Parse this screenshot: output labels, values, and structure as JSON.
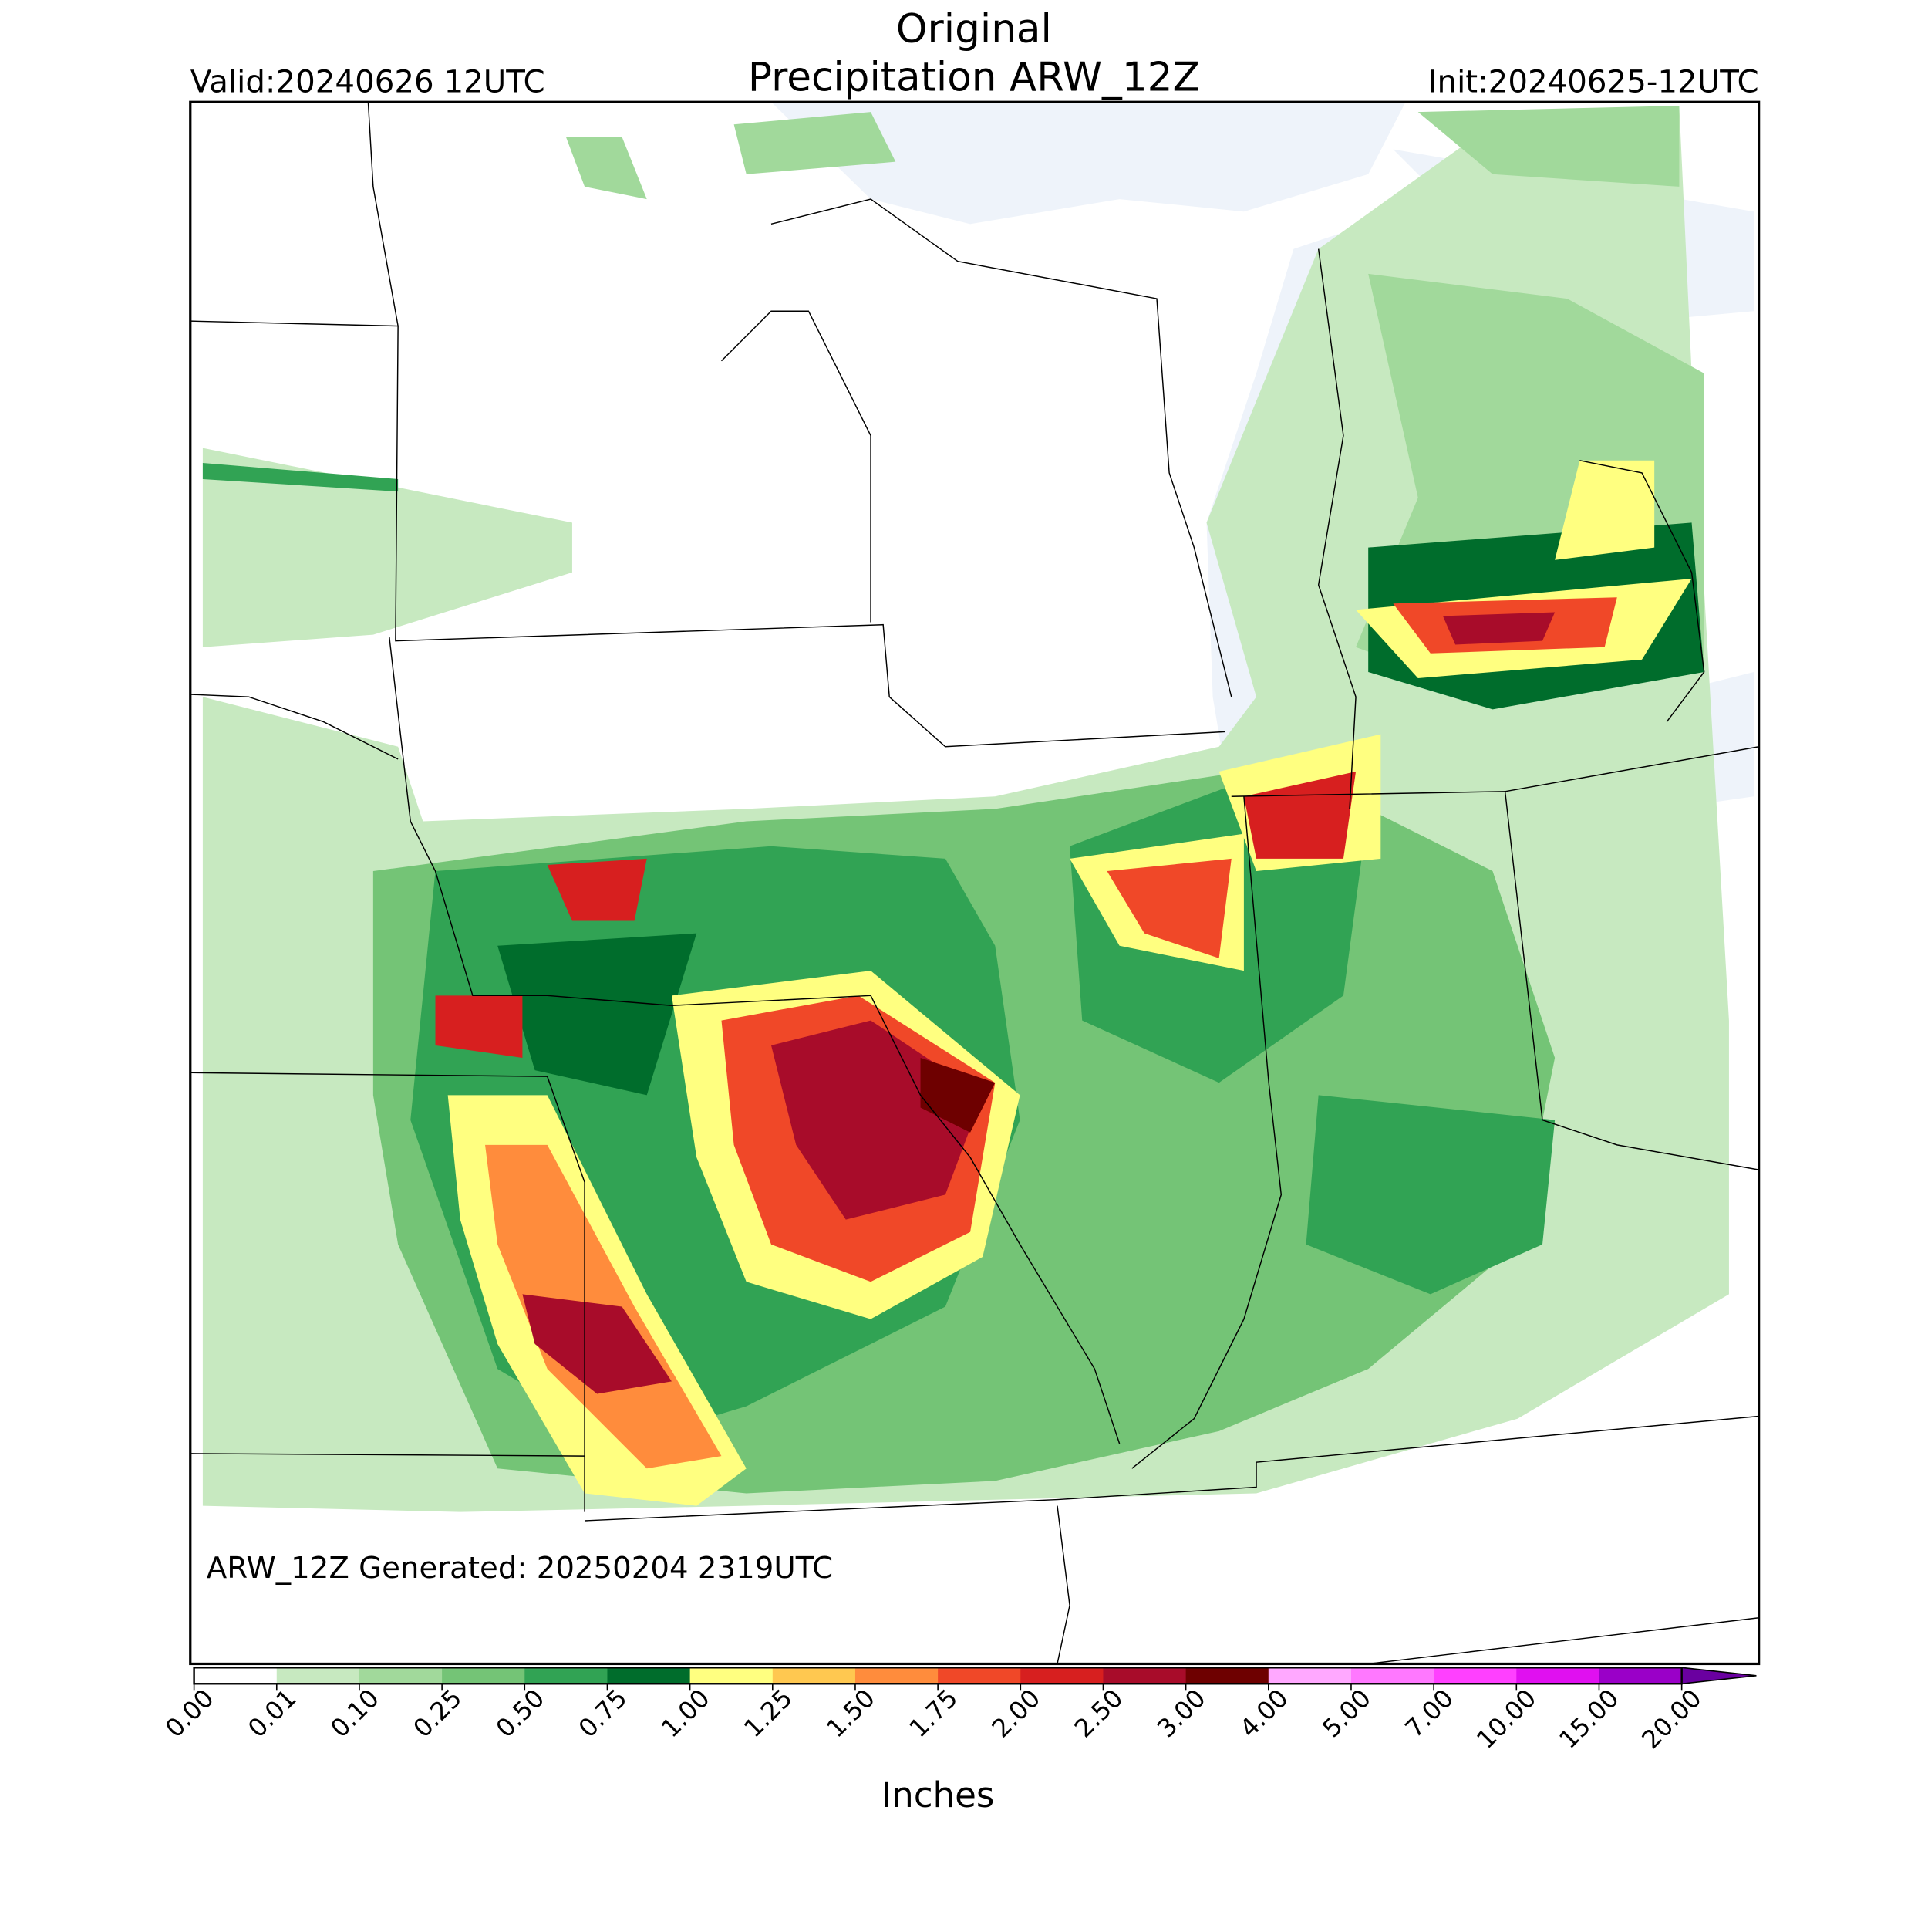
{
  "header": {
    "title_line1": "Original",
    "title_line2": "Precipitation ARW_12Z",
    "valid": "Valid:20240626 12UTC",
    "init": "Init:20240625-12UTC"
  },
  "map": {
    "note": "ARW_12Z Generated: 20250204 2319UTC"
  },
  "colorbar": {
    "label": "Inches",
    "ticks": [
      "0.00",
      "0.01",
      "0.10",
      "0.25",
      "0.50",
      "0.75",
      "1.00",
      "1.25",
      "1.50",
      "1.75",
      "2.00",
      "2.50",
      "3.00",
      "4.00",
      "5.00",
      "7.00",
      "10.00",
      "15.00",
      "20.00"
    ],
    "colors": [
      "#ffffff",
      "#c7e9c0",
      "#a1d99b",
      "#74c476",
      "#31a354",
      "#006d2c",
      "#ffff80",
      "#ffc850",
      "#ff8c3c",
      "#f04828",
      "#d71f1f",
      "#a80c2a",
      "#6e0000",
      "#ffa8ff",
      "#ff78ff",
      "#ff40ff",
      "#e010f0",
      "#9a00c8"
    ],
    "extend_color": "#6a00a0"
  }
}
